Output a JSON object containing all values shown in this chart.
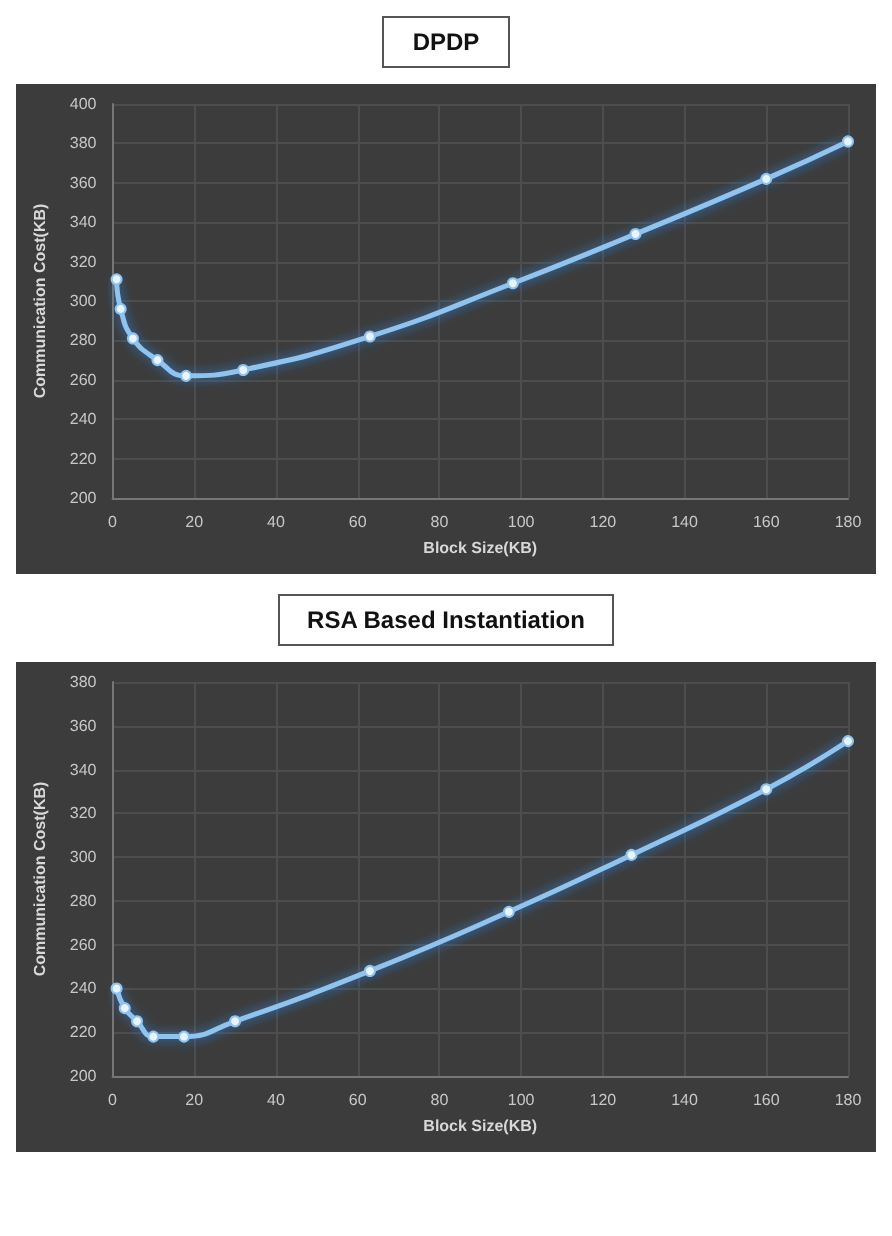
{
  "chart_data": [
    {
      "type": "line",
      "title": "DPDP",
      "xlabel": "Block Size(KB)",
      "ylabel": "Communication Cost(KB)",
      "x": [
        1,
        2,
        5,
        11,
        18,
        32,
        63,
        98,
        128,
        160,
        180
      ],
      "series": [
        {
          "color": "#8fc3f0",
          "values": [
            311,
            296,
            281,
            270,
            262,
            265,
            282,
            309,
            334,
            362,
            381
          ]
        }
      ],
      "xlim": [
        0,
        180
      ],
      "xticks": [
        0,
        20,
        40,
        60,
        80,
        100,
        120,
        140,
        160,
        180
      ],
      "ylim": [
        200,
        400
      ],
      "yticks": [
        200,
        220,
        240,
        260,
        280,
        300,
        320,
        340,
        360,
        380,
        400
      ],
      "grid": true,
      "marker": "circle",
      "line_style": "solid"
    },
    {
      "type": "line",
      "title": "RSA Based Instantiation",
      "xlabel": "Block Size(KB)",
      "ylabel": "Communication Cost(KB)",
      "x": [
        1,
        3,
        6,
        10,
        17.5,
        30,
        63,
        97,
        127,
        160,
        180
      ],
      "series": [
        {
          "color": "#8fc3f0",
          "values": [
            240,
            231,
            225,
            218,
            218,
            225,
            248,
            275,
            301,
            331,
            353
          ]
        }
      ],
      "xlim": [
        0,
        180
      ],
      "xticks": [
        0,
        20,
        40,
        60,
        80,
        100,
        120,
        140,
        160,
        180
      ],
      "ylim": [
        200,
        380
      ],
      "yticks": [
        200,
        220,
        240,
        260,
        280,
        300,
        320,
        340,
        360,
        380
      ],
      "grid": true,
      "marker": "circle",
      "line_style": "solid"
    }
  ]
}
